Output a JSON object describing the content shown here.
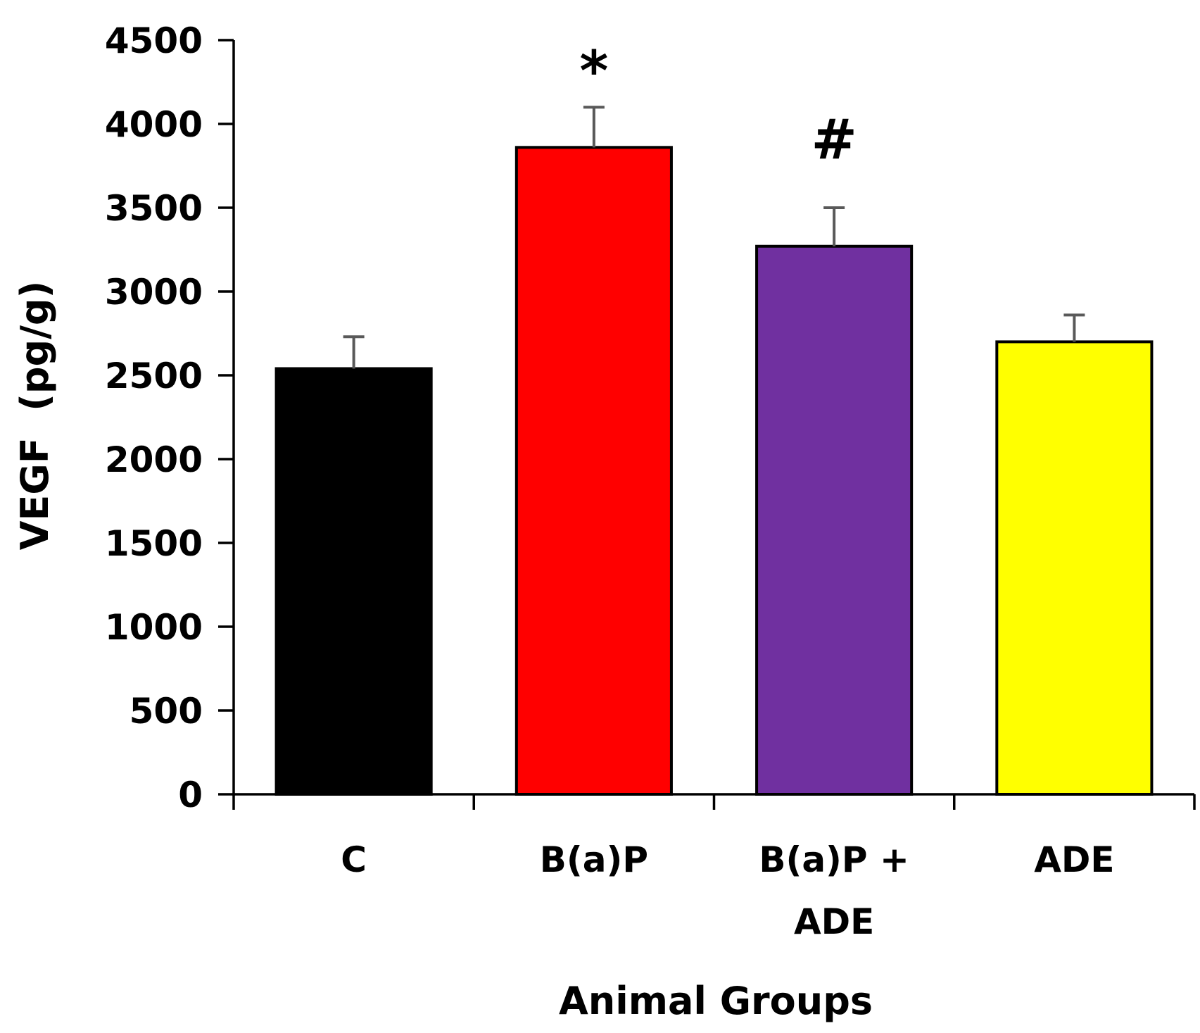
{
  "chart_data": {
    "type": "bar",
    "title": "",
    "xlabel": "Animal Groups",
    "ylabel": "VEGF  (pg/g)",
    "ylim": [
      0,
      4500
    ],
    "yticks": [
      "0",
      "500",
      "1000",
      "1500",
      "2000",
      "2500",
      "3000",
      "3500",
      "4000",
      "4500"
    ],
    "categories": [
      {
        "lines": [
          "C"
        ]
      },
      {
        "lines": [
          "B(a)P"
        ]
      },
      {
        "lines": [
          "B(a)P +",
          "ADE"
        ]
      },
      {
        "lines": [
          "ADE"
        ]
      }
    ],
    "values": [
      2540,
      3860,
      3270,
      2700
    ],
    "errors": [
      190,
      240,
      230,
      160
    ],
    "colors": [
      "#000000",
      "#ff0000",
      "#7030a0",
      "#ffff00"
    ],
    "annotations": [
      "",
      "*",
      "#",
      ""
    ],
    "grid": false
  }
}
